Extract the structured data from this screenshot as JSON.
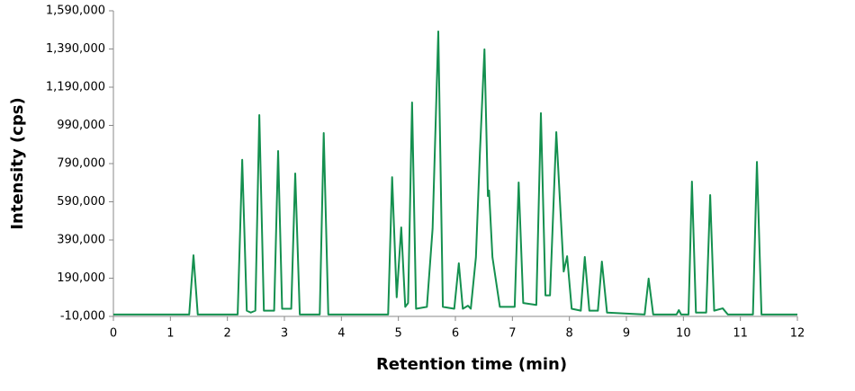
{
  "chart_data": {
    "type": "line",
    "x_label": "Retention time (min)",
    "y_label": "Intensity (cps)",
    "xlim": [
      0,
      12
    ],
    "xticks": [
      0,
      1,
      2,
      3,
      4,
      5,
      6,
      7,
      8,
      9,
      10,
      11,
      12
    ],
    "ylim": [
      -10000,
      1590000
    ],
    "yticks": [
      {
        "value": -10000,
        "label": "-10,000"
      },
      {
        "value": 190000,
        "label": "190,000"
      },
      {
        "value": 390000,
        "label": "390,000"
      },
      {
        "value": 590000,
        "label": "590,000"
      },
      {
        "value": 790000,
        "label": "790,000"
      },
      {
        "value": 990000,
        "label": "990,000"
      },
      {
        "value": 1190000,
        "label": "1,190,000"
      },
      {
        "value": 1390000,
        "label": "1,390,000"
      },
      {
        "value": 1590000,
        "label": "1,590,000"
      }
    ],
    "grid": false,
    "x": [
      0,
      1.33,
      1.405,
      1.48,
      2.18,
      2.26,
      2.34,
      2.41,
      2.49,
      2.56,
      2.64,
      2.82,
      2.89,
      2.96,
      3.12,
      3.19,
      3.27,
      3.62,
      3.69,
      3.77,
      4.82,
      4.89,
      4.97,
      5.05,
      5.12,
      5.17,
      5.24,
      5.31,
      5.5,
      5.6,
      5.7,
      5.78,
      5.98,
      6.06,
      6.13,
      6.22,
      6.27,
      6.36,
      6.43,
      6.51,
      6.57,
      6.59,
      6.65,
      6.78,
      7.04,
      7.11,
      7.19,
      7.42,
      7.5,
      7.58,
      7.66,
      7.77,
      7.9,
      7.96,
      8.04,
      8.2,
      8.27,
      8.35,
      8.5,
      8.57,
      8.66,
      9.32,
      9.39,
      9.47,
      9.88,
      9.92,
      9.96,
      10.09,
      10.15,
      10.22,
      10.4,
      10.47,
      10.54,
      10.69,
      10.78,
      11.22,
      11.29,
      11.37,
      12
    ],
    "series": [
      {
        "color": "#14904f",
        "values": [
          0,
          0,
          310000,
          0,
          0,
          810000,
          20000,
          10000,
          20000,
          1044000,
          20000,
          20000,
          856000,
          30000,
          30000,
          738000,
          0,
          0,
          950000,
          0,
          0,
          719000,
          90000,
          456000,
          40000,
          60000,
          1110000,
          30000,
          40000,
          450000,
          1482000,
          40000,
          30000,
          268000,
          30000,
          46000,
          30000,
          300000,
          846000,
          1388000,
          620000,
          649000,
          300000,
          40000,
          40000,
          691000,
          60000,
          50000,
          1054000,
          100000,
          100000,
          955000,
          225000,
          305000,
          30000,
          20000,
          301000,
          20000,
          20000,
          277000,
          10000,
          0,
          188000,
          0,
          0,
          23000,
          0,
          0,
          696000,
          10000,
          10000,
          625000,
          20000,
          32000,
          0,
          0,
          799000,
          0,
          0
        ]
      }
    ]
  }
}
